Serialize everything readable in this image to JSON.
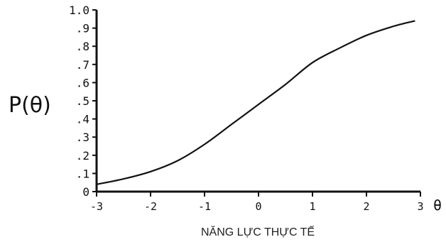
{
  "chart_data": {
    "type": "line",
    "title": "",
    "ylabel": "P(θ)",
    "xlabel": "NĂNG LỰC THỰC TẾ",
    "x_symbol": "θ",
    "xlim": [
      -3,
      3
    ],
    "ylim": [
      0,
      1.0
    ],
    "x_ticks": [
      "-3",
      "-2",
      "-1",
      "0",
      "1",
      "2",
      "3"
    ],
    "y_ticks": [
      "0",
      ".1",
      ".2",
      ".3",
      ".4",
      ".5",
      ".6",
      ".7",
      ".8",
      ".9",
      "1.0"
    ],
    "grid": false,
    "series": [
      {
        "color": "#111111",
        "x": [
          -3.0,
          -2.5,
          -2.0,
          -1.5,
          -1.0,
          -0.5,
          0.0,
          0.5,
          1.0,
          1.5,
          2.0,
          2.5,
          2.9
        ],
        "y": [
          0.04,
          0.07,
          0.11,
          0.17,
          0.26,
          0.37,
          0.48,
          0.59,
          0.71,
          0.79,
          0.86,
          0.91,
          0.94
        ]
      }
    ]
  }
}
